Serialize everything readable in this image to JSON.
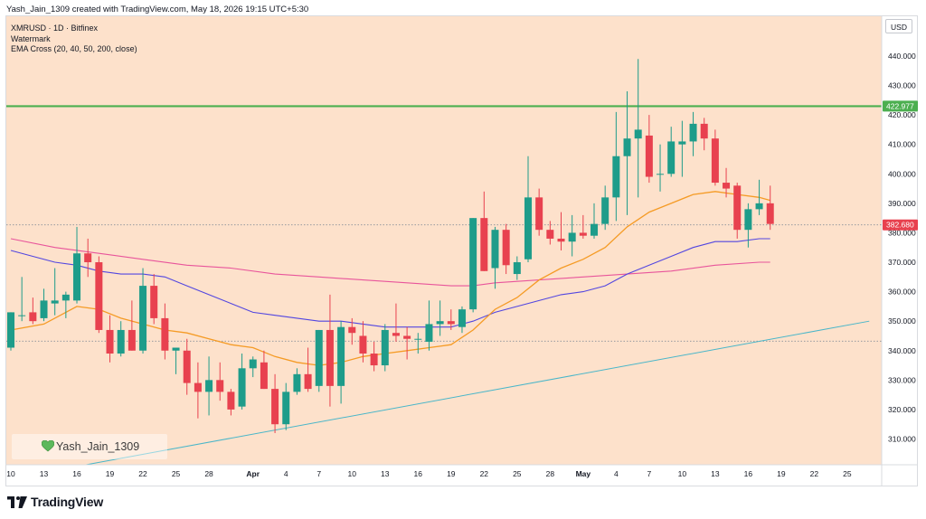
{
  "header": {
    "title": "Yash_Jain_1309 created with TradingView.com, May 18, 2026 19:15 UTC+5:30"
  },
  "legend": {
    "symbol": "XMRUSD · 1D · Bitfinex",
    "watermark_label": "Watermark",
    "indicator": "EMA Cross (20, 40, 50, 200, close)"
  },
  "currency_button": "USD",
  "watermark": {
    "text": "Yash_Jain_1309",
    "icon": "heart-icon"
  },
  "brand": {
    "name": "TradingView",
    "icon": "tradingview-logo-icon"
  },
  "colors": {
    "background": "#fde1cb",
    "up": "#1e9c8a",
    "down": "#e8414f",
    "ema20": "#f59b25",
    "ema50": "#5246e0",
    "ema200": "#e8559b",
    "support_line": "#49b6c9",
    "resistance_line": "#4caf50"
  },
  "chart_data": {
    "type": "candlestick",
    "y_axis": {
      "range": [
        300,
        447
      ],
      "ticks": [
        "310.000",
        "320.000",
        "330.000",
        "340.000",
        "350.000",
        "360.000",
        "370.000",
        "380.000",
        "390.000",
        "400.000",
        "410.000",
        "420.000",
        "430.000",
        "440.000"
      ]
    },
    "x_axis": {
      "start": "Mar 10",
      "end": "May 27",
      "ticks": [
        {
          "day": 0,
          "label": "10"
        },
        {
          "day": 3,
          "label": "13"
        },
        {
          "day": 6,
          "label": "16"
        },
        {
          "day": 9,
          "label": "19"
        },
        {
          "day": 12,
          "label": "22"
        },
        {
          "day": 15,
          "label": "25"
        },
        {
          "day": 18,
          "label": "28"
        },
        {
          "day": 22,
          "label": "Apr"
        },
        {
          "day": 25,
          "label": "4"
        },
        {
          "day": 28,
          "label": "7"
        },
        {
          "day": 31,
          "label": "10"
        },
        {
          "day": 34,
          "label": "13"
        },
        {
          "day": 37,
          "label": "16"
        },
        {
          "day": 40,
          "label": "19"
        },
        {
          "day": 43,
          "label": "22"
        },
        {
          "day": 46,
          "label": "25"
        },
        {
          "day": 49,
          "label": "28"
        },
        {
          "day": 52,
          "label": "May"
        },
        {
          "day": 55,
          "label": "4"
        },
        {
          "day": 58,
          "label": "7"
        },
        {
          "day": 61,
          "label": "10"
        },
        {
          "day": 64,
          "label": "13"
        },
        {
          "day": 67,
          "label": "16"
        },
        {
          "day": 70,
          "label": "19"
        },
        {
          "day": 73,
          "label": "22"
        },
        {
          "day": 76,
          "label": "25"
        }
      ]
    },
    "candles": [
      {
        "d": 0,
        "o": 341,
        "h": 353,
        "l": 340,
        "c": 353
      },
      {
        "d": 1,
        "o": 352,
        "h": 365,
        "l": 350,
        "c": 352
      },
      {
        "d": 2,
        "o": 353,
        "h": 358,
        "l": 349,
        "c": 350
      },
      {
        "d": 3,
        "o": 351,
        "h": 361,
        "l": 350,
        "c": 357
      },
      {
        "d": 4,
        "o": 356,
        "h": 368,
        "l": 352,
        "c": 357
      },
      {
        "d": 5,
        "o": 357,
        "h": 360,
        "l": 351,
        "c": 359
      },
      {
        "d": 6,
        "o": 357,
        "h": 382,
        "l": 356,
        "c": 373
      },
      {
        "d": 7,
        "o": 373,
        "h": 378,
        "l": 365,
        "c": 370
      },
      {
        "d": 8,
        "o": 370,
        "h": 372,
        "l": 346,
        "c": 347
      },
      {
        "d": 9,
        "o": 347,
        "h": 352,
        "l": 336,
        "c": 339
      },
      {
        "d": 10,
        "o": 339,
        "h": 350,
        "l": 338,
        "c": 347
      },
      {
        "d": 11,
        "o": 347,
        "h": 357,
        "l": 340,
        "c": 340
      },
      {
        "d": 12,
        "o": 340,
        "h": 368,
        "l": 339,
        "c": 362
      },
      {
        "d": 13,
        "o": 362,
        "h": 366,
        "l": 349,
        "c": 351
      },
      {
        "d": 14,
        "o": 351,
        "h": 356,
        "l": 337,
        "c": 340
      },
      {
        "d": 15,
        "o": 340,
        "h": 341,
        "l": 332,
        "c": 341
      },
      {
        "d": 16,
        "o": 340,
        "h": 344,
        "l": 325,
        "c": 329
      },
      {
        "d": 17,
        "o": 329,
        "h": 336,
        "l": 317,
        "c": 326
      },
      {
        "d": 18,
        "o": 326,
        "h": 338,
        "l": 318,
        "c": 330
      },
      {
        "d": 19,
        "o": 330,
        "h": 336,
        "l": 323,
        "c": 326
      },
      {
        "d": 20,
        "o": 326,
        "h": 327,
        "l": 318,
        "c": 320
      },
      {
        "d": 21,
        "o": 321,
        "h": 339,
        "l": 320,
        "c": 334
      },
      {
        "d": 22,
        "o": 334,
        "h": 338,
        "l": 331,
        "c": 337
      },
      {
        "d": 23,
        "o": 336,
        "h": 340,
        "l": 327,
        "c": 327
      },
      {
        "d": 24,
        "o": 327,
        "h": 332,
        "l": 312,
        "c": 315
      },
      {
        "d": 25,
        "o": 315,
        "h": 329,
        "l": 313,
        "c": 326
      },
      {
        "d": 26,
        "o": 326,
        "h": 334,
        "l": 325,
        "c": 332
      },
      {
        "d": 27,
        "o": 332,
        "h": 341,
        "l": 326,
        "c": 327
      },
      {
        "d": 28,
        "o": 328,
        "h": 347,
        "l": 326,
        "c": 347
      },
      {
        "d": 29,
        "o": 347,
        "h": 359,
        "l": 321,
        "c": 328
      },
      {
        "d": 30,
        "o": 328,
        "h": 350,
        "l": 322,
        "c": 348
      },
      {
        "d": 31,
        "o": 348,
        "h": 351,
        "l": 342,
        "c": 346
      },
      {
        "d": 32,
        "o": 345,
        "h": 350,
        "l": 336,
        "c": 339
      },
      {
        "d": 33,
        "o": 339,
        "h": 343,
        "l": 333,
        "c": 335
      },
      {
        "d": 34,
        "o": 335,
        "h": 349,
        "l": 333,
        "c": 347
      },
      {
        "d": 35,
        "o": 346,
        "h": 356,
        "l": 343,
        "c": 345
      },
      {
        "d": 36,
        "o": 345,
        "h": 348,
        "l": 337,
        "c": 344
      },
      {
        "d": 37,
        "o": 344,
        "h": 346,
        "l": 339,
        "c": 344
      },
      {
        "d": 38,
        "o": 343,
        "h": 357,
        "l": 340,
        "c": 349
      },
      {
        "d": 39,
        "o": 349,
        "h": 357,
        "l": 345,
        "c": 350
      },
      {
        "d": 40,
        "o": 350,
        "h": 354,
        "l": 347,
        "c": 349
      },
      {
        "d": 41,
        "o": 348,
        "h": 355,
        "l": 346,
        "c": 354
      },
      {
        "d": 42,
        "o": 354,
        "h": 385,
        "l": 353,
        "c": 385
      },
      {
        "d": 43,
        "o": 385,
        "h": 394,
        "l": 367,
        "c": 367
      },
      {
        "d": 44,
        "o": 368,
        "h": 382,
        "l": 361,
        "c": 381
      },
      {
        "d": 45,
        "o": 381,
        "h": 383,
        "l": 366,
        "c": 369
      },
      {
        "d": 46,
        "o": 366,
        "h": 372,
        "l": 364,
        "c": 370
      },
      {
        "d": 47,
        "o": 371,
        "h": 406,
        "l": 370,
        "c": 392
      },
      {
        "d": 48,
        "o": 392,
        "h": 395,
        "l": 379,
        "c": 381
      },
      {
        "d": 49,
        "o": 381,
        "h": 384,
        "l": 376,
        "c": 378
      },
      {
        "d": 50,
        "o": 378,
        "h": 387,
        "l": 374,
        "c": 377
      },
      {
        "d": 51,
        "o": 377,
        "h": 386,
        "l": 372,
        "c": 380
      },
      {
        "d": 52,
        "o": 380,
        "h": 386,
        "l": 378,
        "c": 379
      },
      {
        "d": 53,
        "o": 379,
        "h": 390,
        "l": 378,
        "c": 383
      },
      {
        "d": 54,
        "o": 383,
        "h": 396,
        "l": 381,
        "c": 392
      },
      {
        "d": 55,
        "o": 392,
        "h": 421,
        "l": 384,
        "c": 406
      },
      {
        "d": 56,
        "o": 406,
        "h": 428,
        "l": 386,
        "c": 412
      },
      {
        "d": 57,
        "o": 412,
        "h": 439,
        "l": 392,
        "c": 415
      },
      {
        "d": 58,
        "o": 413,
        "h": 420,
        "l": 397,
        "c": 399
      },
      {
        "d": 59,
        "o": 400,
        "h": 410,
        "l": 394,
        "c": 400
      },
      {
        "d": 60,
        "o": 400,
        "h": 416,
        "l": 399,
        "c": 411
      },
      {
        "d": 61,
        "o": 410,
        "h": 418,
        "l": 399,
        "c": 411
      },
      {
        "d": 62,
        "o": 411,
        "h": 421,
        "l": 406,
        "c": 417
      },
      {
        "d": 63,
        "o": 417,
        "h": 419,
        "l": 408,
        "c": 412
      },
      {
        "d": 64,
        "o": 412,
        "h": 415,
        "l": 396,
        "c": 397
      },
      {
        "d": 65,
        "o": 397,
        "h": 402,
        "l": 392,
        "c": 395
      },
      {
        "d": 66,
        "o": 396,
        "h": 397,
        "l": 378,
        "c": 381
      },
      {
        "d": 67,
        "o": 381,
        "h": 390,
        "l": 375,
        "c": 388
      },
      {
        "d": 68,
        "o": 388,
        "h": 398,
        "l": 386,
        "c": 390
      },
      {
        "d": 69,
        "o": 390,
        "h": 396,
        "l": 381,
        "c": 383
      }
    ],
    "ema_20": [
      [
        0,
        347
      ],
      [
        3,
        349
      ],
      [
        6,
        355
      ],
      [
        8,
        354
      ],
      [
        10,
        351
      ],
      [
        12,
        349
      ],
      [
        14,
        347
      ],
      [
        16,
        346
      ],
      [
        18,
        344
      ],
      [
        20,
        342
      ],
      [
        22,
        341
      ],
      [
        24,
        338
      ],
      [
        26,
        336
      ],
      [
        28,
        335
      ],
      [
        30,
        336
      ],
      [
        32,
        338
      ],
      [
        34,
        339
      ],
      [
        36,
        340
      ],
      [
        38,
        341
      ],
      [
        40,
        342
      ],
      [
        42,
        347
      ],
      [
        44,
        354
      ],
      [
        46,
        358
      ],
      [
        48,
        364
      ],
      [
        50,
        368
      ],
      [
        52,
        371
      ],
      [
        54,
        375
      ],
      [
        56,
        382
      ],
      [
        58,
        387
      ],
      [
        60,
        390
      ],
      [
        62,
        393
      ],
      [
        64,
        394
      ],
      [
        66,
        393
      ],
      [
        68,
        392
      ],
      [
        69,
        391
      ]
    ],
    "ema_50": [
      [
        0,
        374
      ],
      [
        2,
        372
      ],
      [
        4,
        370
      ],
      [
        6,
        369
      ],
      [
        8,
        367
      ],
      [
        10,
        366
      ],
      [
        12,
        366
      ],
      [
        14,
        365
      ],
      [
        16,
        362
      ],
      [
        18,
        359
      ],
      [
        20,
        356
      ],
      [
        22,
        353
      ],
      [
        24,
        352
      ],
      [
        26,
        351
      ],
      [
        28,
        350
      ],
      [
        30,
        350
      ],
      [
        32,
        349
      ],
      [
        34,
        348
      ],
      [
        36,
        348
      ],
      [
        38,
        348
      ],
      [
        40,
        348
      ],
      [
        42,
        350
      ],
      [
        44,
        353
      ],
      [
        46,
        355
      ],
      [
        48,
        357
      ],
      [
        50,
        359
      ],
      [
        52,
        360
      ],
      [
        54,
        362
      ],
      [
        56,
        366
      ],
      [
        58,
        369
      ],
      [
        60,
        372
      ],
      [
        62,
        375
      ],
      [
        64,
        377
      ],
      [
        66,
        377
      ],
      [
        68,
        378
      ],
      [
        69,
        378
      ]
    ],
    "ema_200": [
      [
        0,
        378
      ],
      [
        4,
        375
      ],
      [
        8,
        373
      ],
      [
        12,
        371
      ],
      [
        16,
        369
      ],
      [
        20,
        368
      ],
      [
        24,
        366
      ],
      [
        28,
        365
      ],
      [
        32,
        364
      ],
      [
        36,
        363
      ],
      [
        40,
        362
      ],
      [
        42,
        362
      ],
      [
        44,
        363
      ],
      [
        48,
        364
      ],
      [
        52,
        365
      ],
      [
        56,
        366
      ],
      [
        60,
        367
      ],
      [
        64,
        369
      ],
      [
        68,
        370
      ],
      [
        69,
        370
      ]
    ],
    "support_line": {
      "from": [
        5,
        300
      ],
      "to": [
        78,
        350
      ]
    },
    "resistance_line": {
      "price": 422.977
    },
    "dotted_levels": [
      382.68,
      343.2
    ],
    "price_labels": [
      {
        "text": "422.977",
        "price": 422.977,
        "color": "#4caf50"
      },
      {
        "text": "382.680",
        "price": 382.68,
        "color": "#e8414f"
      }
    ]
  }
}
